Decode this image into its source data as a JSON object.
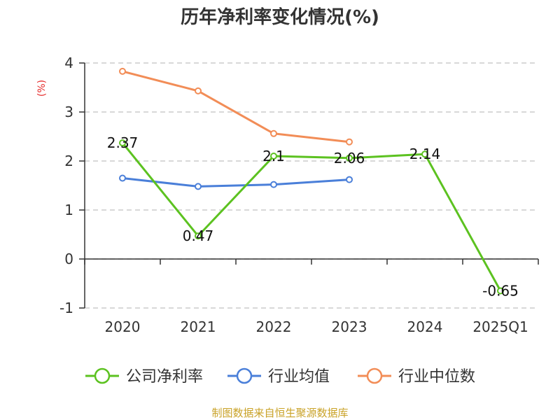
{
  "chart_data": {
    "type": "line",
    "title": "历年净利率变化情况(%)",
    "ylabel": "(%)",
    "categories": [
      "2020",
      "2021",
      "2022",
      "2023",
      "2024",
      "2025Q1"
    ],
    "y_ticks": [
      "4",
      "3",
      "2",
      "1",
      "0",
      "-1"
    ],
    "ylim": [
      -1,
      4
    ],
    "grid": true,
    "legend_position": "bottom",
    "series": [
      {
        "name": "公司净利率",
        "color": "#5cc220",
        "values": [
          2.37,
          0.47,
          2.1,
          2.06,
          2.14,
          -0.65
        ],
        "labels": [
          "2.37",
          "0.47",
          "2.1",
          "2.06",
          "2.14",
          "-0.65"
        ]
      },
      {
        "name": "行业均值",
        "color": "#4a7fd9",
        "values": [
          1.65,
          1.48,
          1.52,
          1.62,
          null,
          null
        ]
      },
      {
        "name": "行业中位数",
        "color": "#f28d57",
        "values": [
          3.83,
          3.43,
          2.56,
          2.39,
          null,
          null
        ]
      }
    ],
    "ylabel_color": "#e52b2b"
  },
  "source": {
    "text": "制图数据来自恒生聚源数据库",
    "color": "#c9a227"
  }
}
